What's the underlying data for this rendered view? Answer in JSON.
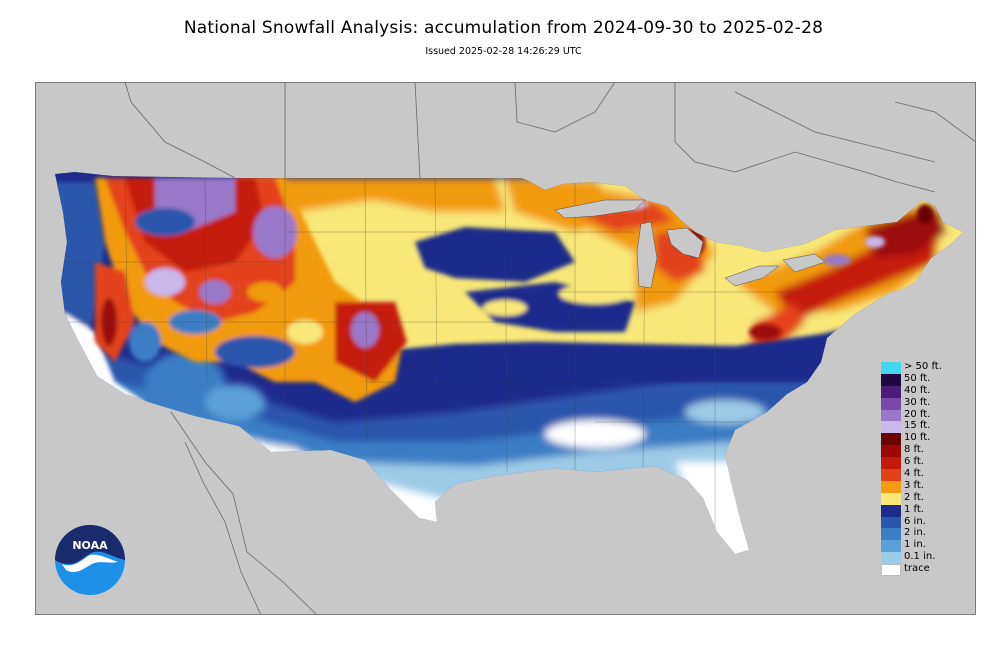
{
  "title": "National Snowfall Analysis: accumulation from 2024-09-30 to 2025-02-28",
  "subtitle": "Issued 2025-02-28 14:26:29 UTC",
  "logo_text": "NOAA",
  "colors": {
    "ocean_land_background": "#c8c8c8",
    "border_line": "#505050",
    "frame": "#7a7a7a"
  },
  "legend": [
    {
      "label": "> 50 ft.",
      "color": "#44d8f0"
    },
    {
      "label": "50 ft.",
      "color": "#200840"
    },
    {
      "label": "40 ft.",
      "color": "#4a1e78"
    },
    {
      "label": "30 ft.",
      "color": "#7a48a8"
    },
    {
      "label": "20 ft.",
      "color": "#9878c8"
    },
    {
      "label": "15 ft.",
      "color": "#c8b8ec"
    },
    {
      "label": "10 ft.",
      "color": "#6a0404"
    },
    {
      "label": "8 ft.",
      "color": "#9c0808"
    },
    {
      "label": "6 ft.",
      "color": "#c41a0c"
    },
    {
      "label": "4 ft.",
      "color": "#e2421a"
    },
    {
      "label": "3 ft.",
      "color": "#f29a10"
    },
    {
      "label": "2 ft.",
      "color": "#f8e878"
    },
    {
      "label": "1 ft.",
      "color": "#1e2a8c"
    },
    {
      "label": "6 in.",
      "color": "#2a56ac"
    },
    {
      "label": "2 in.",
      "color": "#3a7ec4"
    },
    {
      "label": "1 in.",
      "color": "#5aa0d6"
    },
    {
      "label": "0.1 in.",
      "color": "#9ccbe8"
    },
    {
      "label": "trace",
      "color": "#ffffff"
    }
  ]
}
